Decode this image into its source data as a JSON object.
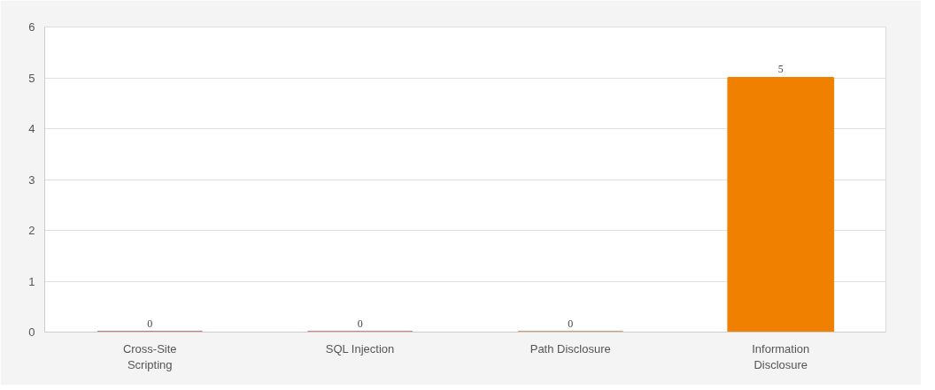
{
  "chart_data": {
    "type": "bar",
    "categories": [
      "Cross-Site Scripting",
      "SQL Injection",
      "Path Disclosure",
      "Information Disclosure"
    ],
    "values": [
      0,
      0,
      0,
      5
    ],
    "colors": [
      "#7a0000",
      "#9a1200",
      "#a04000",
      "#f08000"
    ],
    "ylim": [
      0,
      6
    ],
    "yticks": [
      0,
      1,
      2,
      3,
      4,
      5,
      6
    ],
    "grid": "y",
    "data_labels": true
  }
}
